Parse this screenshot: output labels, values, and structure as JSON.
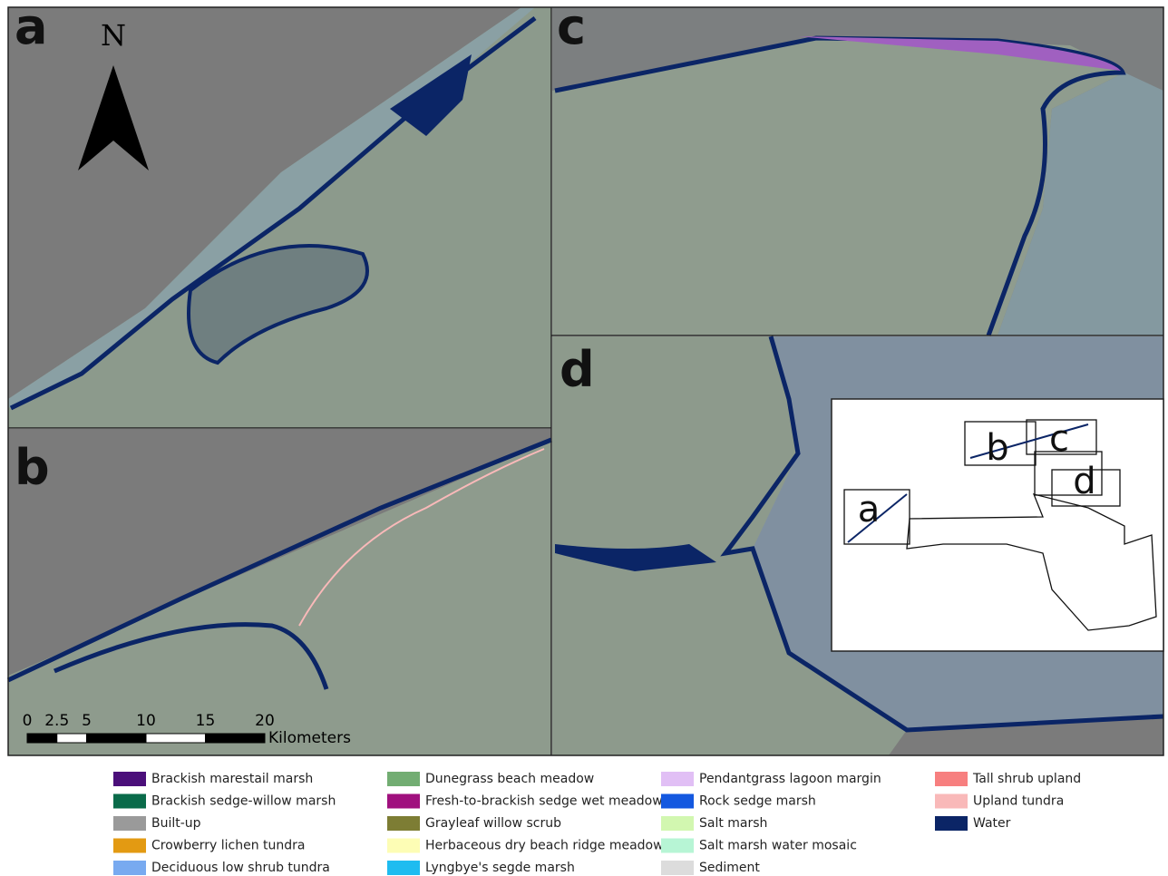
{
  "panels": [
    {
      "label": "a"
    },
    {
      "label": "b"
    },
    {
      "label": "c"
    },
    {
      "label": "d"
    }
  ],
  "north": "N",
  "scale_bar": {
    "ticks": [
      0,
      2.5,
      5,
      10,
      15,
      20
    ],
    "unit": "Kilometers"
  },
  "inset": {
    "labels": [
      "a",
      "b",
      "c",
      "d"
    ]
  },
  "legend": [
    {
      "label": "Brackish marestail marsh",
      "color": "#4b0f7a"
    },
    {
      "label": "Brackish sedge-willow marsh",
      "color": "#0a6b4a"
    },
    {
      "label": "Built-up",
      "color": "#9a9a9a"
    },
    {
      "label": "Crowberry lichen tundra",
      "color": "#e39a12"
    },
    {
      "label": "Deciduous low shrub tundra",
      "color": "#78aaf0"
    },
    {
      "label": "Dunegrass beach meadow",
      "color": "#72ad72"
    },
    {
      "label": "Fresh-to-brackish sedge wet meadow",
      "color": "#a0107e"
    },
    {
      "label": "Grayleaf willow scrub",
      "color": "#7d7d34"
    },
    {
      "label": "Herbaceous dry beach ridge meadow",
      "color": "#fdfdb5"
    },
    {
      "label": "Lyngbye's segde marsh",
      "color": "#1ebcf0"
    },
    {
      "label": "Pendantgrass lagoon margin",
      "color": "#e1bff5"
    },
    {
      "label": "Rock sedge marsh",
      "color": "#1458e0"
    },
    {
      "label": "Salt marsh",
      "color": "#d2f7b0"
    },
    {
      "label": "Salt marsh water mosaic",
      "color": "#b7f5d5"
    },
    {
      "label": "Sediment",
      "color": "#dcdcdc"
    },
    {
      "label": "Tall shrub upland",
      "color": "#f77f7f"
    },
    {
      "label": "Upland tundra",
      "color": "#f9b9b9"
    },
    {
      "label": "Water",
      "color": "#0b2566"
    }
  ]
}
